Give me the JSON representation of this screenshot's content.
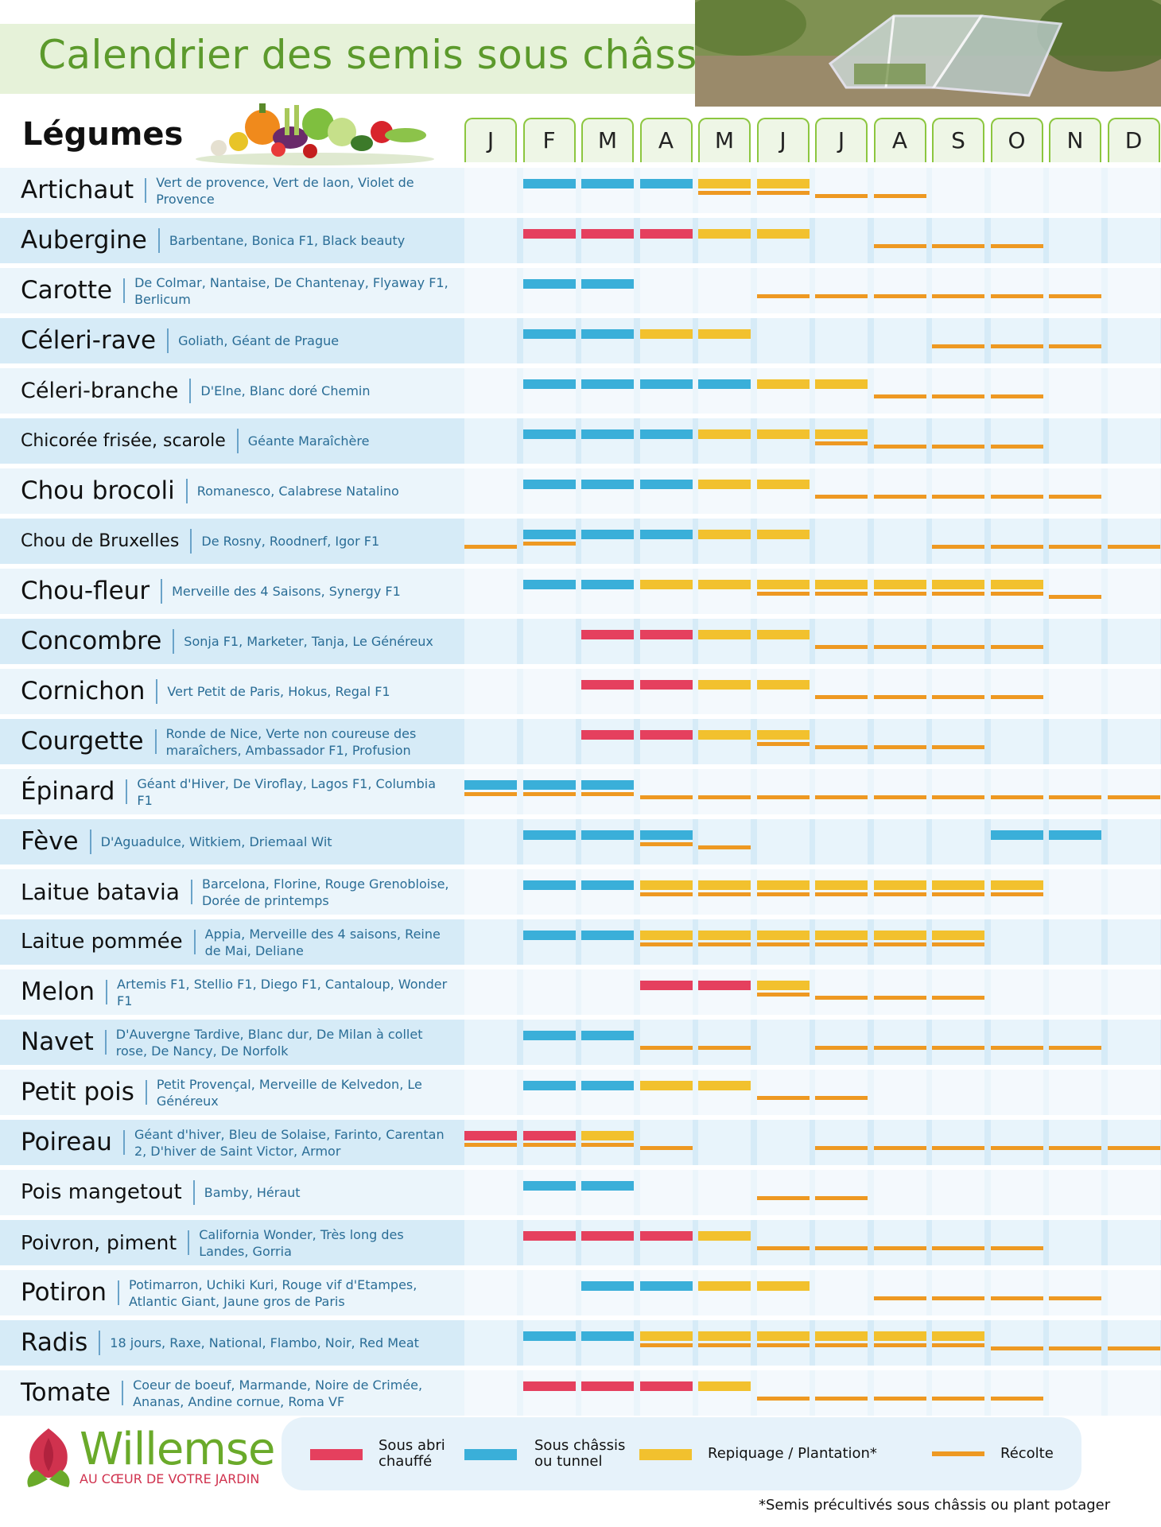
{
  "header": {
    "title": "Calendrier des semis sous châssis",
    "legumes_heading": "Légumes"
  },
  "months": [
    "J",
    "F",
    "M",
    "A",
    "M",
    "J",
    "J",
    "A",
    "S",
    "O",
    "N",
    "D"
  ],
  "colors": {
    "red": "#e5405e",
    "blue": "#3aafd9",
    "yellow": "#f2c12e",
    "orange": "#ee9922",
    "title_green": "#5c9a2c",
    "variety_blue": "#2a6d96"
  },
  "rows": [
    {
      "name": "Artichaut",
      "varieties": "Vert de provence, Vert de laon, Violet de Provence",
      "red": [],
      "blue": [
        2,
        3,
        4
      ],
      "yellow": [
        5,
        6
      ],
      "orange": [
        5,
        6,
        7,
        8
      ]
    },
    {
      "name": "Aubergine",
      "varieties": "Barbentane, Bonica F1, Black beauty",
      "red": [
        2,
        3,
        4
      ],
      "blue": [],
      "yellow": [
        5,
        6
      ],
      "orange": [
        8,
        9,
        10
      ]
    },
    {
      "name": "Carotte",
      "varieties": "De Colmar, Nantaise, De Chantenay, Flyaway F1, Berlicum",
      "red": [],
      "blue": [
        2,
        3
      ],
      "yellow": [],
      "orange": [
        6,
        7,
        8,
        9,
        10,
        11
      ]
    },
    {
      "name": "Céleri-rave",
      "varieties": "Goliath, Géant de Prague",
      "red": [],
      "blue": [
        2,
        3
      ],
      "yellow": [
        4,
        5
      ],
      "orange": [
        9,
        10,
        11
      ]
    },
    {
      "name": "Céleri-branche",
      "varieties": "D'Elne, Blanc doré Chemin",
      "red": [],
      "blue": [
        2,
        3,
        4,
        5
      ],
      "yellow": [
        6,
        7
      ],
      "orange": [
        8,
        9,
        10
      ]
    },
    {
      "name": "Chicorée frisée, scarole",
      "varieties": "Géante Maraîchère",
      "red": [],
      "blue": [
        2,
        3,
        4
      ],
      "yellow": [
        5,
        6,
        7
      ],
      "orange": [
        7,
        8,
        9,
        10
      ]
    },
    {
      "name": "Chou brocoli",
      "varieties": "Romanesco, Calabrese Natalino",
      "red": [],
      "blue": [
        2,
        3,
        4
      ],
      "yellow": [
        5,
        6
      ],
      "orange": [
        7,
        8,
        9,
        10,
        11
      ]
    },
    {
      "name": "Chou de Bruxelles",
      "varieties": "De Rosny, Roodnerf, Igor F1",
      "red": [],
      "blue": [
        2,
        3,
        4
      ],
      "yellow": [
        5,
        6
      ],
      "orange": [
        1,
        2,
        9,
        10,
        11,
        12
      ]
    },
    {
      "name": "Chou-fleur",
      "varieties": "Merveille des 4 Saisons, Synergy F1",
      "red": [],
      "blue": [
        2,
        3
      ],
      "yellow": [
        4,
        5,
        6,
        7,
        8,
        9,
        10
      ],
      "orange": [
        6,
        7,
        8,
        9,
        10,
        11
      ]
    },
    {
      "name": "Concombre",
      "varieties": "Sonja F1, Marketer, Tanja, Le Généreux",
      "red": [
        3,
        4
      ],
      "blue": [],
      "yellow": [
        5,
        6
      ],
      "orange": [
        7,
        8,
        9,
        10
      ]
    },
    {
      "name": "Cornichon",
      "varieties": "Vert Petit de Paris, Hokus, Regal F1",
      "red": [
        3,
        4
      ],
      "blue": [],
      "yellow": [
        5,
        6
      ],
      "orange": [
        7,
        8,
        9,
        10
      ]
    },
    {
      "name": "Courgette",
      "varieties": "Ronde de Nice, Verte non coureuse des maraîchers, Ambassador F1, Profusion",
      "red": [
        3,
        4
      ],
      "blue": [],
      "yellow": [
        5,
        6
      ],
      "orange": [
        6,
        7,
        8,
        9
      ]
    },
    {
      "name": "Épinard",
      "varieties": "Géant d'Hiver, De Viroflay, Lagos F1, Columbia F1",
      "red": [],
      "blue": [
        1,
        2,
        3
      ],
      "yellow": [],
      "orange": [
        1,
        2,
        3,
        4,
        5,
        6,
        7,
        8,
        9,
        10,
        11,
        12
      ]
    },
    {
      "name": "Fève",
      "varieties": "D'Aguadulce, Witkiem, Driemaal Wit",
      "red": [],
      "blue": [
        2,
        3,
        4,
        10,
        11
      ],
      "yellow": [],
      "orange": [
        4,
        5
      ]
    },
    {
      "name": "Laitue batavia",
      "varieties": "Barcelona, Florine, Rouge Grenobloise, Dorée de printemps",
      "red": [],
      "blue": [
        2,
        3
      ],
      "yellow": [
        4,
        5,
        6,
        7,
        8,
        9,
        10
      ],
      "orange": [
        4,
        5,
        6,
        7,
        8,
        9,
        10
      ]
    },
    {
      "name": "Laitue pommée",
      "varieties": "Appia, Merveille des 4 saisons, Reine de Mai, Deliane",
      "red": [],
      "blue": [
        2,
        3
      ],
      "yellow": [
        4,
        5,
        6,
        7,
        8,
        9
      ],
      "orange": [
        4,
        5,
        6,
        7,
        8,
        9
      ]
    },
    {
      "name": "Melon",
      "varieties": "Artemis F1, Stellio F1, Diego F1, Cantaloup, Wonder F1",
      "red": [
        4,
        5
      ],
      "blue": [],
      "yellow": [
        6
      ],
      "orange": [
        6,
        7,
        8,
        9
      ]
    },
    {
      "name": "Navet",
      "varieties": "D'Auvergne Tardive, Blanc dur, De Milan à collet rose, De Nancy, De Norfolk",
      "red": [],
      "blue": [
        2,
        3
      ],
      "yellow": [],
      "orange": [
        4,
        5,
        7,
        8,
        9,
        10,
        11
      ]
    },
    {
      "name": "Petit pois",
      "varieties": "Petit Provençal, Merveille de Kelvedon, Le Généreux",
      "red": [],
      "blue": [
        2,
        3
      ],
      "yellow": [
        4,
        5
      ],
      "orange": [
        6,
        7
      ]
    },
    {
      "name": "Poireau",
      "varieties": "Géant d'hiver, Bleu de Solaise, Farinto, Carentan 2, D'hiver de Saint Victor, Armor",
      "red": [
        1,
        2
      ],
      "blue": [],
      "yellow": [
        3
      ],
      "orange": [
        1,
        2,
        3,
        4,
        7,
        8,
        9,
        10,
        11,
        12
      ]
    },
    {
      "name": "Pois mangetout",
      "varieties": "Bamby, Héraut",
      "red": [],
      "blue": [
        2,
        3
      ],
      "yellow": [],
      "orange": [
        6,
        7
      ]
    },
    {
      "name": "Poivron, piment",
      "varieties": "California Wonder, Très long des Landes, Gorria",
      "red": [
        2,
        3,
        4
      ],
      "blue": [],
      "yellow": [
        5
      ],
      "orange": [
        6,
        7,
        8,
        9,
        10
      ]
    },
    {
      "name": "Potiron",
      "varieties": "Potimarron, Uchiki Kuri, Rouge vif d'Etampes, Atlantic Giant, Jaune gros de Paris",
      "red": [],
      "blue": [
        3,
        4
      ],
      "yellow": [
        5,
        6
      ],
      "orange": [
        8,
        9,
        10,
        11
      ]
    },
    {
      "name": "Radis",
      "varieties": "18 jours, Raxe, National, Flambo, Noir, Red Meat",
      "red": [],
      "blue": [
        2,
        3
      ],
      "yellow": [
        4,
        5,
        6,
        7,
        8,
        9
      ],
      "orange": [
        4,
        5,
        6,
        7,
        8,
        9,
        10,
        11,
        12
      ]
    },
    {
      "name": "Tomate",
      "varieties": "Coeur de boeuf, Marmande, Noire de Crimée, Ananas, Andine cornue, Roma VF",
      "red": [
        2,
        3,
        4
      ],
      "blue": [],
      "yellow": [
        5
      ],
      "orange": [
        6,
        7,
        8,
        9,
        10
      ]
    }
  ],
  "legend": {
    "red_label_1": "Sous abri",
    "red_label_2": "chauffé",
    "blue_label_1": "Sous châssis",
    "blue_label_2": "ou tunnel",
    "yellow_label": "Repiquage / Plantation*",
    "orange_label": "Récolte"
  },
  "brand": {
    "name": "Willemse",
    "tagline": "AU CŒUR DE VOTRE JARDIN"
  },
  "footnote": "*Semis précultivés sous châssis ou plant potager"
}
